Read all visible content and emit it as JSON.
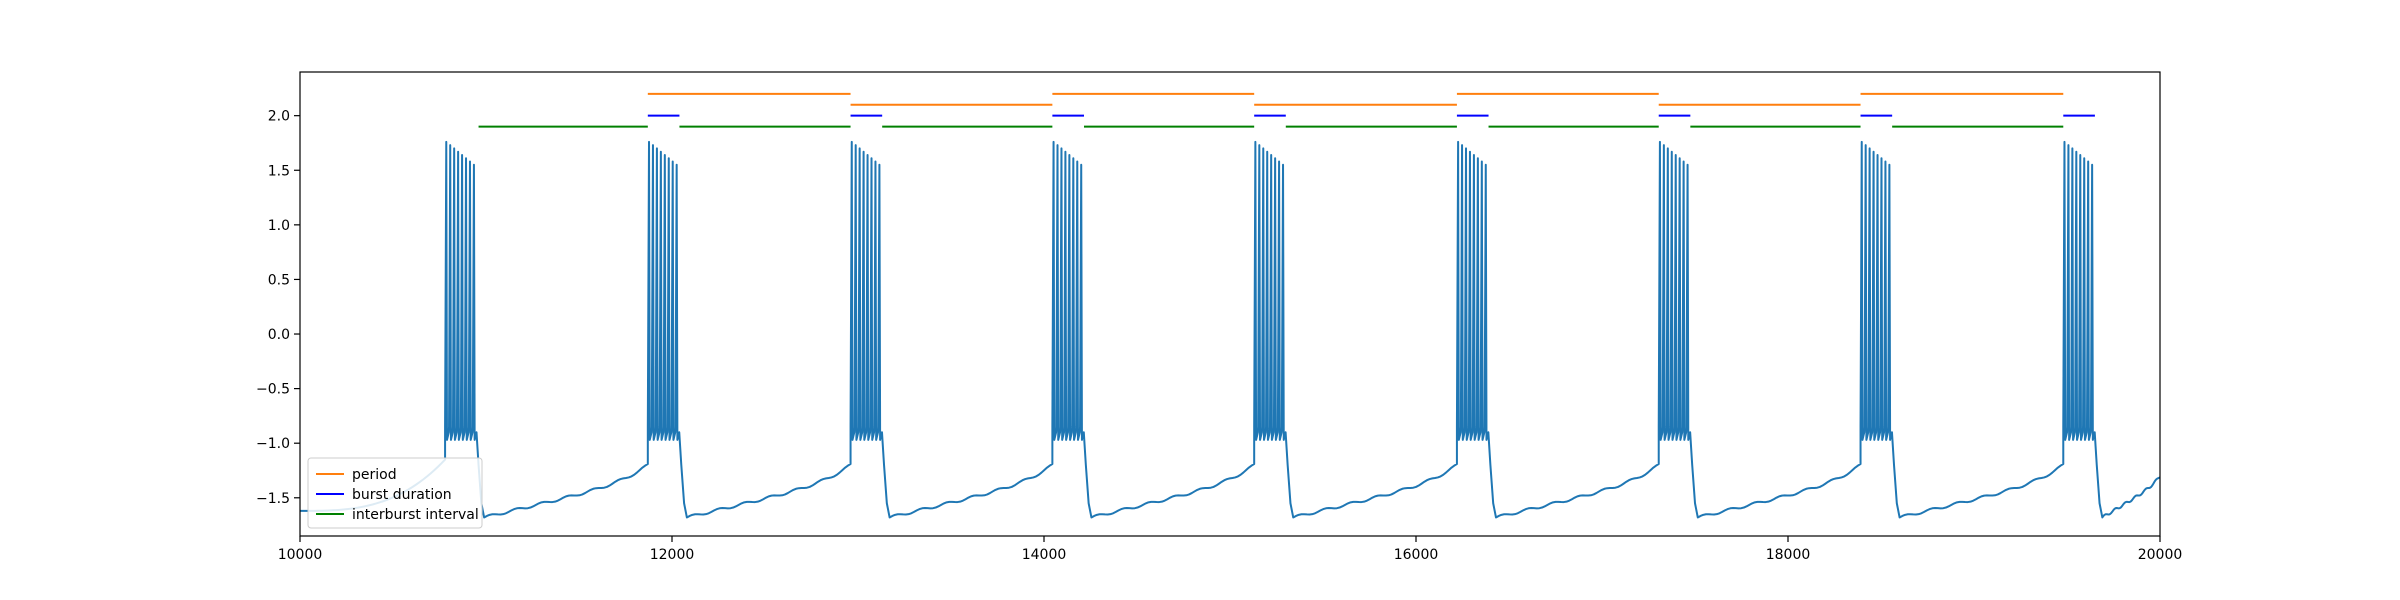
{
  "chart_data": {
    "type": "line",
    "title": "",
    "xlabel": "",
    "ylabel": "",
    "xlim": [
      10000,
      20000
    ],
    "ylim": [
      -1.85,
      2.4
    ],
    "grid": false,
    "legend_placement": "lower-left",
    "x_ticks": [
      10000,
      12000,
      14000,
      16000,
      18000,
      20000
    ],
    "x_tick_labels": [
      "10000",
      "12000",
      "14000",
      "16000",
      "18000",
      "20000"
    ],
    "y_ticks": [
      -1.5,
      -1.0,
      -0.5,
      0.0,
      0.5,
      1.0,
      1.5,
      2.0
    ],
    "y_tick_labels": [
      "−1.5",
      "−1.0",
      "−0.5",
      "0.0",
      "0.5",
      "1.0",
      "1.5",
      "2.0"
    ],
    "trace": {
      "color": "#1f77b4",
      "burst_starts": [
        10780,
        11870,
        12960,
        14045,
        15130,
        16220,
        17305,
        18390,
        19480
      ],
      "burst_duration": 170,
      "spikes_per_burst": 8,
      "spike_peak": 1.76,
      "spike_trough": -0.95,
      "post_burst_min": -1.68,
      "pre_burst_level": -1.2
    },
    "series": [
      {
        "name": "period",
        "color": "#ff7f0e",
        "segments": [
          {
            "x": [
              11870,
              12960
            ],
            "y": 2.2
          },
          {
            "x": [
              12960,
              14045
            ],
            "y": 2.1
          },
          {
            "x": [
              14045,
              15130
            ],
            "y": 2.2
          },
          {
            "x": [
              15130,
              16220
            ],
            "y": 2.1
          },
          {
            "x": [
              16220,
              17305
            ],
            "y": 2.2
          },
          {
            "x": [
              17305,
              18390
            ],
            "y": 2.1
          },
          {
            "x": [
              18390,
              19480
            ],
            "y": 2.2
          }
        ]
      },
      {
        "name": "burst duration",
        "color": "#0000ff",
        "segments": [
          {
            "x": [
              11870,
              12040
            ],
            "y": 2.0
          },
          {
            "x": [
              12960,
              13130
            ],
            "y": 2.0
          },
          {
            "x": [
              14045,
              14215
            ],
            "y": 2.0
          },
          {
            "x": [
              15130,
              15300
            ],
            "y": 2.0
          },
          {
            "x": [
              16220,
              16390
            ],
            "y": 2.0
          },
          {
            "x": [
              17305,
              17475
            ],
            "y": 2.0
          },
          {
            "x": [
              18390,
              18560
            ],
            "y": 2.0
          },
          {
            "x": [
              19480,
              19650
            ],
            "y": 2.0
          }
        ]
      },
      {
        "name": "interburst interval",
        "color": "#008000",
        "segments": [
          {
            "x": [
              10960,
              11870
            ],
            "y": 1.9
          },
          {
            "x": [
              12040,
              12960
            ],
            "y": 1.9
          },
          {
            "x": [
              13130,
              14045
            ],
            "y": 1.9
          },
          {
            "x": [
              14215,
              15130
            ],
            "y": 1.9
          },
          {
            "x": [
              15300,
              16220
            ],
            "y": 1.9
          },
          {
            "x": [
              16390,
              17305
            ],
            "y": 1.9
          },
          {
            "x": [
              17475,
              18390
            ],
            "y": 1.9
          },
          {
            "x": [
              18560,
              19480
            ],
            "y": 1.9
          }
        ]
      }
    ],
    "legend": [
      {
        "label": "period",
        "color": "#ff7f0e"
      },
      {
        "label": "burst duration",
        "color": "#0000ff"
      },
      {
        "label": "interburst interval",
        "color": "#008000"
      }
    ]
  }
}
